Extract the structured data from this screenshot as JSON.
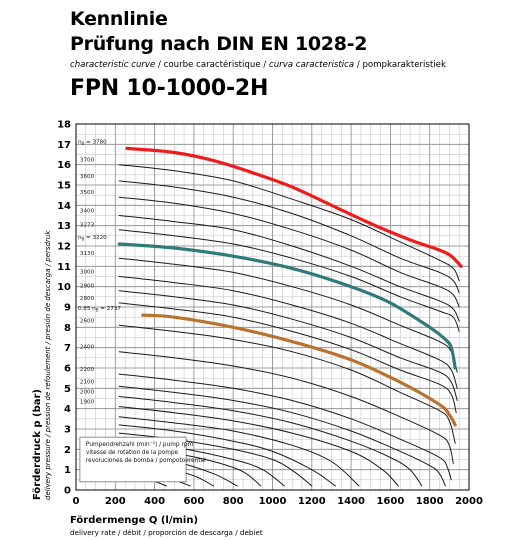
{
  "header": {
    "title_line1": "Kennlinie",
    "title_line2": "Prüfung nach DIN EN 1028-2",
    "subtitle_parts": [
      {
        "text": "characteristic curve",
        "italic": true
      },
      {
        "text": " / ",
        "italic": false
      },
      {
        "text": "courbe caractéristique",
        "italic": false
      },
      {
        "text": " / ",
        "italic": false
      },
      {
        "text": "curva caracteristica",
        "italic": true
      },
      {
        "text": " / ",
        "italic": false
      },
      {
        "text": "pompkarakteristiek",
        "italic": false
      }
    ],
    "model": "FPN 10-1000-2H"
  },
  "chart_data": {
    "type": "line",
    "title": "",
    "xlabel": "Fördermenge Q (l/min)",
    "xlabel_sub": "delivery rate / débit / proporción de descarga / debiet",
    "ylabel": "Förderdruck  p (bar)",
    "ylabel_sub": "delivery pressure / pression de refoulement / presión de descarga / persdruk",
    "xlim": [
      0,
      2000
    ],
    "ylim": [
      0,
      18
    ],
    "xticks": [
      0,
      200,
      400,
      600,
      800,
      1000,
      1200,
      1400,
      1600,
      1800,
      2000
    ],
    "yticks": [
      0,
      1,
      2,
      3,
      4,
      5,
      6,
      7,
      8,
      9,
      10,
      11,
      12,
      13,
      14,
      15,
      16,
      17,
      18
    ],
    "grid": true,
    "colors": {
      "red": "#ee1c1c",
      "teal": "#2f7a7a",
      "brown": "#b9732e",
      "line": "#1a1a1a"
    },
    "curve_labels": [
      {
        "text": "n",
        "sub": "B",
        "suffix": " = 3780"
      },
      {
        "text": "n",
        "sub": "B",
        "suffix": " = 3220"
      },
      {
        "text": "0,85 n",
        "sub": "B",
        "suffix": " = 2737"
      }
    ],
    "legend": {
      "placement": "bottom-left",
      "line1": "Pumpendrehzahl (min⁻¹) / pump rpm",
      "line2": "vitesse de rotation de la pompe",
      "line3": "revoluciones de bomba / pompotoerental"
    },
    "series": [
      {
        "rpm": "3780",
        "style": "red",
        "x": [
          260,
          500,
          700,
          900,
          1100,
          1300,
          1500,
          1700,
          1850,
          1910,
          1960
        ],
        "y": [
          16.8,
          16.6,
          16.2,
          15.6,
          14.9,
          14.0,
          13.1,
          12.3,
          11.8,
          11.5,
          11.0
        ]
      },
      {
        "rpm": "3700",
        "style": "thin",
        "x": [
          220,
          500,
          800,
          1100,
          1400,
          1650,
          1850,
          1920,
          1950
        ],
        "y": [
          16.0,
          15.7,
          15.2,
          14.3,
          13.3,
          12.2,
          11.3,
          10.9,
          10.3
        ]
      },
      {
        "rpm": "3600",
        "style": "thin",
        "x": [
          220,
          500,
          800,
          1100,
          1400,
          1650,
          1850,
          1920,
          1950
        ],
        "y": [
          15.2,
          14.9,
          14.4,
          13.6,
          12.5,
          11.4,
          10.7,
          10.3,
          9.7
        ]
      },
      {
        "rpm": "3500",
        "style": "thin",
        "x": [
          220,
          500,
          800,
          1100,
          1400,
          1650,
          1850,
          1920,
          1950
        ],
        "y": [
          14.4,
          14.1,
          13.6,
          12.8,
          11.8,
          10.7,
          10.0,
          9.6,
          9.0
        ]
      },
      {
        "rpm": "3400",
        "style": "thin",
        "x": [
          220,
          500,
          800,
          1100,
          1400,
          1650,
          1850,
          1920,
          1950
        ],
        "y": [
          13.5,
          13.2,
          12.8,
          12.0,
          11.0,
          10.0,
          9.3,
          8.9,
          8.3
        ]
      },
      {
        "rpm": "3273",
        "style": "thin",
        "x": [
          220,
          500,
          800,
          1100,
          1400,
          1650,
          1850,
          1920,
          1950
        ],
        "y": [
          12.8,
          12.5,
          12.1,
          11.4,
          10.5,
          9.5,
          8.8,
          8.5,
          7.8
        ]
      },
      {
        "rpm": "3220",
        "style": "teal",
        "x": [
          220,
          500,
          800,
          1100,
          1400,
          1600,
          1800,
          1880,
          1910,
          1930
        ],
        "y": [
          12.1,
          11.9,
          11.5,
          10.9,
          10.0,
          9.2,
          8.0,
          7.4,
          7.0,
          6.0
        ]
      },
      {
        "rpm": "3130",
        "style": "thin",
        "x": [
          220,
          500,
          800,
          1100,
          1400,
          1650,
          1850,
          1910,
          1940
        ],
        "y": [
          11.4,
          11.1,
          10.7,
          10.0,
          9.1,
          8.1,
          7.3,
          6.8,
          5.8
        ]
      },
      {
        "rpm": "3000",
        "style": "thin",
        "x": [
          220,
          500,
          800,
          1100,
          1400,
          1650,
          1850,
          1910,
          1940
        ],
        "y": [
          10.5,
          10.2,
          9.8,
          9.1,
          8.2,
          7.2,
          6.4,
          5.9,
          5.0
        ]
      },
      {
        "rpm": "2900",
        "style": "thin",
        "x": [
          220,
          500,
          800,
          1100,
          1400,
          1650,
          1850,
          1910,
          1940
        ],
        "y": [
          9.8,
          9.5,
          9.1,
          8.4,
          7.5,
          6.5,
          5.8,
          5.3,
          4.4
        ]
      },
      {
        "rpm": "2800",
        "style": "thin",
        "x": [
          220,
          500,
          800,
          1100,
          1400,
          1650,
          1850,
          1910,
          1935
        ],
        "y": [
          9.2,
          8.9,
          8.5,
          7.8,
          6.9,
          5.9,
          5.2,
          4.7,
          3.8
        ]
      },
      {
        "rpm": "2737",
        "style": "brown",
        "x": [
          340,
          500,
          800,
          1100,
          1400,
          1650,
          1850,
          1900,
          1930
        ],
        "y": [
          8.6,
          8.5,
          8.0,
          7.3,
          6.4,
          5.3,
          4.2,
          3.7,
          3.2
        ]
      },
      {
        "rpm": "2600",
        "style": "thin",
        "x": [
          220,
          500,
          800,
          1100,
          1400,
          1650,
          1850,
          1900,
          1930
        ],
        "y": [
          8.1,
          7.8,
          7.4,
          6.8,
          5.9,
          4.8,
          3.9,
          3.4,
          2.3
        ]
      },
      {
        "rpm": "2400",
        "style": "thin",
        "x": [
          220,
          500,
          800,
          1100,
          1400,
          1650,
          1850,
          1900,
          1920
        ],
        "y": [
          6.8,
          6.5,
          6.1,
          5.5,
          4.6,
          3.6,
          2.7,
          2.2,
          1.3
        ]
      },
      {
        "rpm": "2200",
        "style": "thin",
        "x": [
          220,
          500,
          800,
          1100,
          1400,
          1650,
          1850,
          1890,
          1910
        ],
        "y": [
          5.7,
          5.4,
          5.0,
          4.4,
          3.5,
          2.5,
          1.6,
          1.1,
          0.5
        ]
      },
      {
        "rpm": "2100",
        "style": "thin",
        "x": [
          220,
          500,
          800,
          1100,
          1400,
          1650,
          1800,
          1850,
          1880
        ],
        "y": [
          5.1,
          4.8,
          4.4,
          3.8,
          2.9,
          1.9,
          1.2,
          0.8,
          0.2
        ]
      },
      {
        "rpm": "2000",
        "style": "thin",
        "x": [
          220,
          500,
          800,
          1100,
          1400,
          1600,
          1700,
          1760
        ],
        "y": [
          4.6,
          4.3,
          3.9,
          3.3,
          2.4,
          1.6,
          1.0,
          0.2
        ]
      },
      {
        "rpm": "1900",
        "style": "thin",
        "x": [
          220,
          500,
          800,
          1100,
          1400,
          1560,
          1640
        ],
        "y": [
          4.1,
          3.8,
          3.4,
          2.8,
          1.9,
          1.0,
          0.2
        ]
      },
      {
        "rpm": "",
        "style": "thin",
        "x": [
          220,
          500,
          800,
          1100,
          1300,
          1440
        ],
        "y": [
          3.6,
          3.3,
          2.9,
          2.2,
          1.4,
          0.2
        ]
      },
      {
        "rpm": "",
        "style": "thin",
        "x": [
          220,
          500,
          800,
          1000,
          1200,
          1320
        ],
        "y": [
          3.2,
          2.9,
          2.4,
          1.9,
          1.0,
          0.2
        ]
      },
      {
        "rpm": "",
        "style": "thin",
        "x": [
          220,
          500,
          800,
          1000,
          1110,
          1200
        ],
        "y": [
          2.8,
          2.5,
          2.0,
          1.5,
          0.9,
          0.2
        ]
      },
      {
        "rpm": "",
        "style": "thin",
        "x": [
          220,
          500,
          800,
          950,
          1060
        ],
        "y": [
          2.4,
          2.1,
          1.5,
          1.0,
          0.2
        ]
      },
      {
        "rpm": "",
        "style": "thin",
        "x": [
          220,
          500,
          700,
          850,
          940
        ],
        "y": [
          2.1,
          1.8,
          1.4,
          0.9,
          0.2
        ]
      },
      {
        "rpm": "",
        "style": "thin",
        "x": [
          220,
          500,
          700,
          820
        ],
        "y": [
          1.8,
          1.4,
          0.8,
          0.2
        ]
      },
      {
        "rpm": "",
        "style": "thin",
        "x": [
          220,
          450,
          600,
          700
        ],
        "y": [
          1.5,
          1.1,
          0.7,
          0.2
        ]
      },
      {
        "rpm": "",
        "style": "thin",
        "x": [
          220,
          400,
          500,
          580
        ],
        "y": [
          1.2,
          0.8,
          0.5,
          0.2
        ]
      },
      {
        "rpm": "",
        "style": "thin",
        "x": [
          220,
          350,
          460
        ],
        "y": [
          0.9,
          0.6,
          0.2
        ]
      }
    ]
  }
}
